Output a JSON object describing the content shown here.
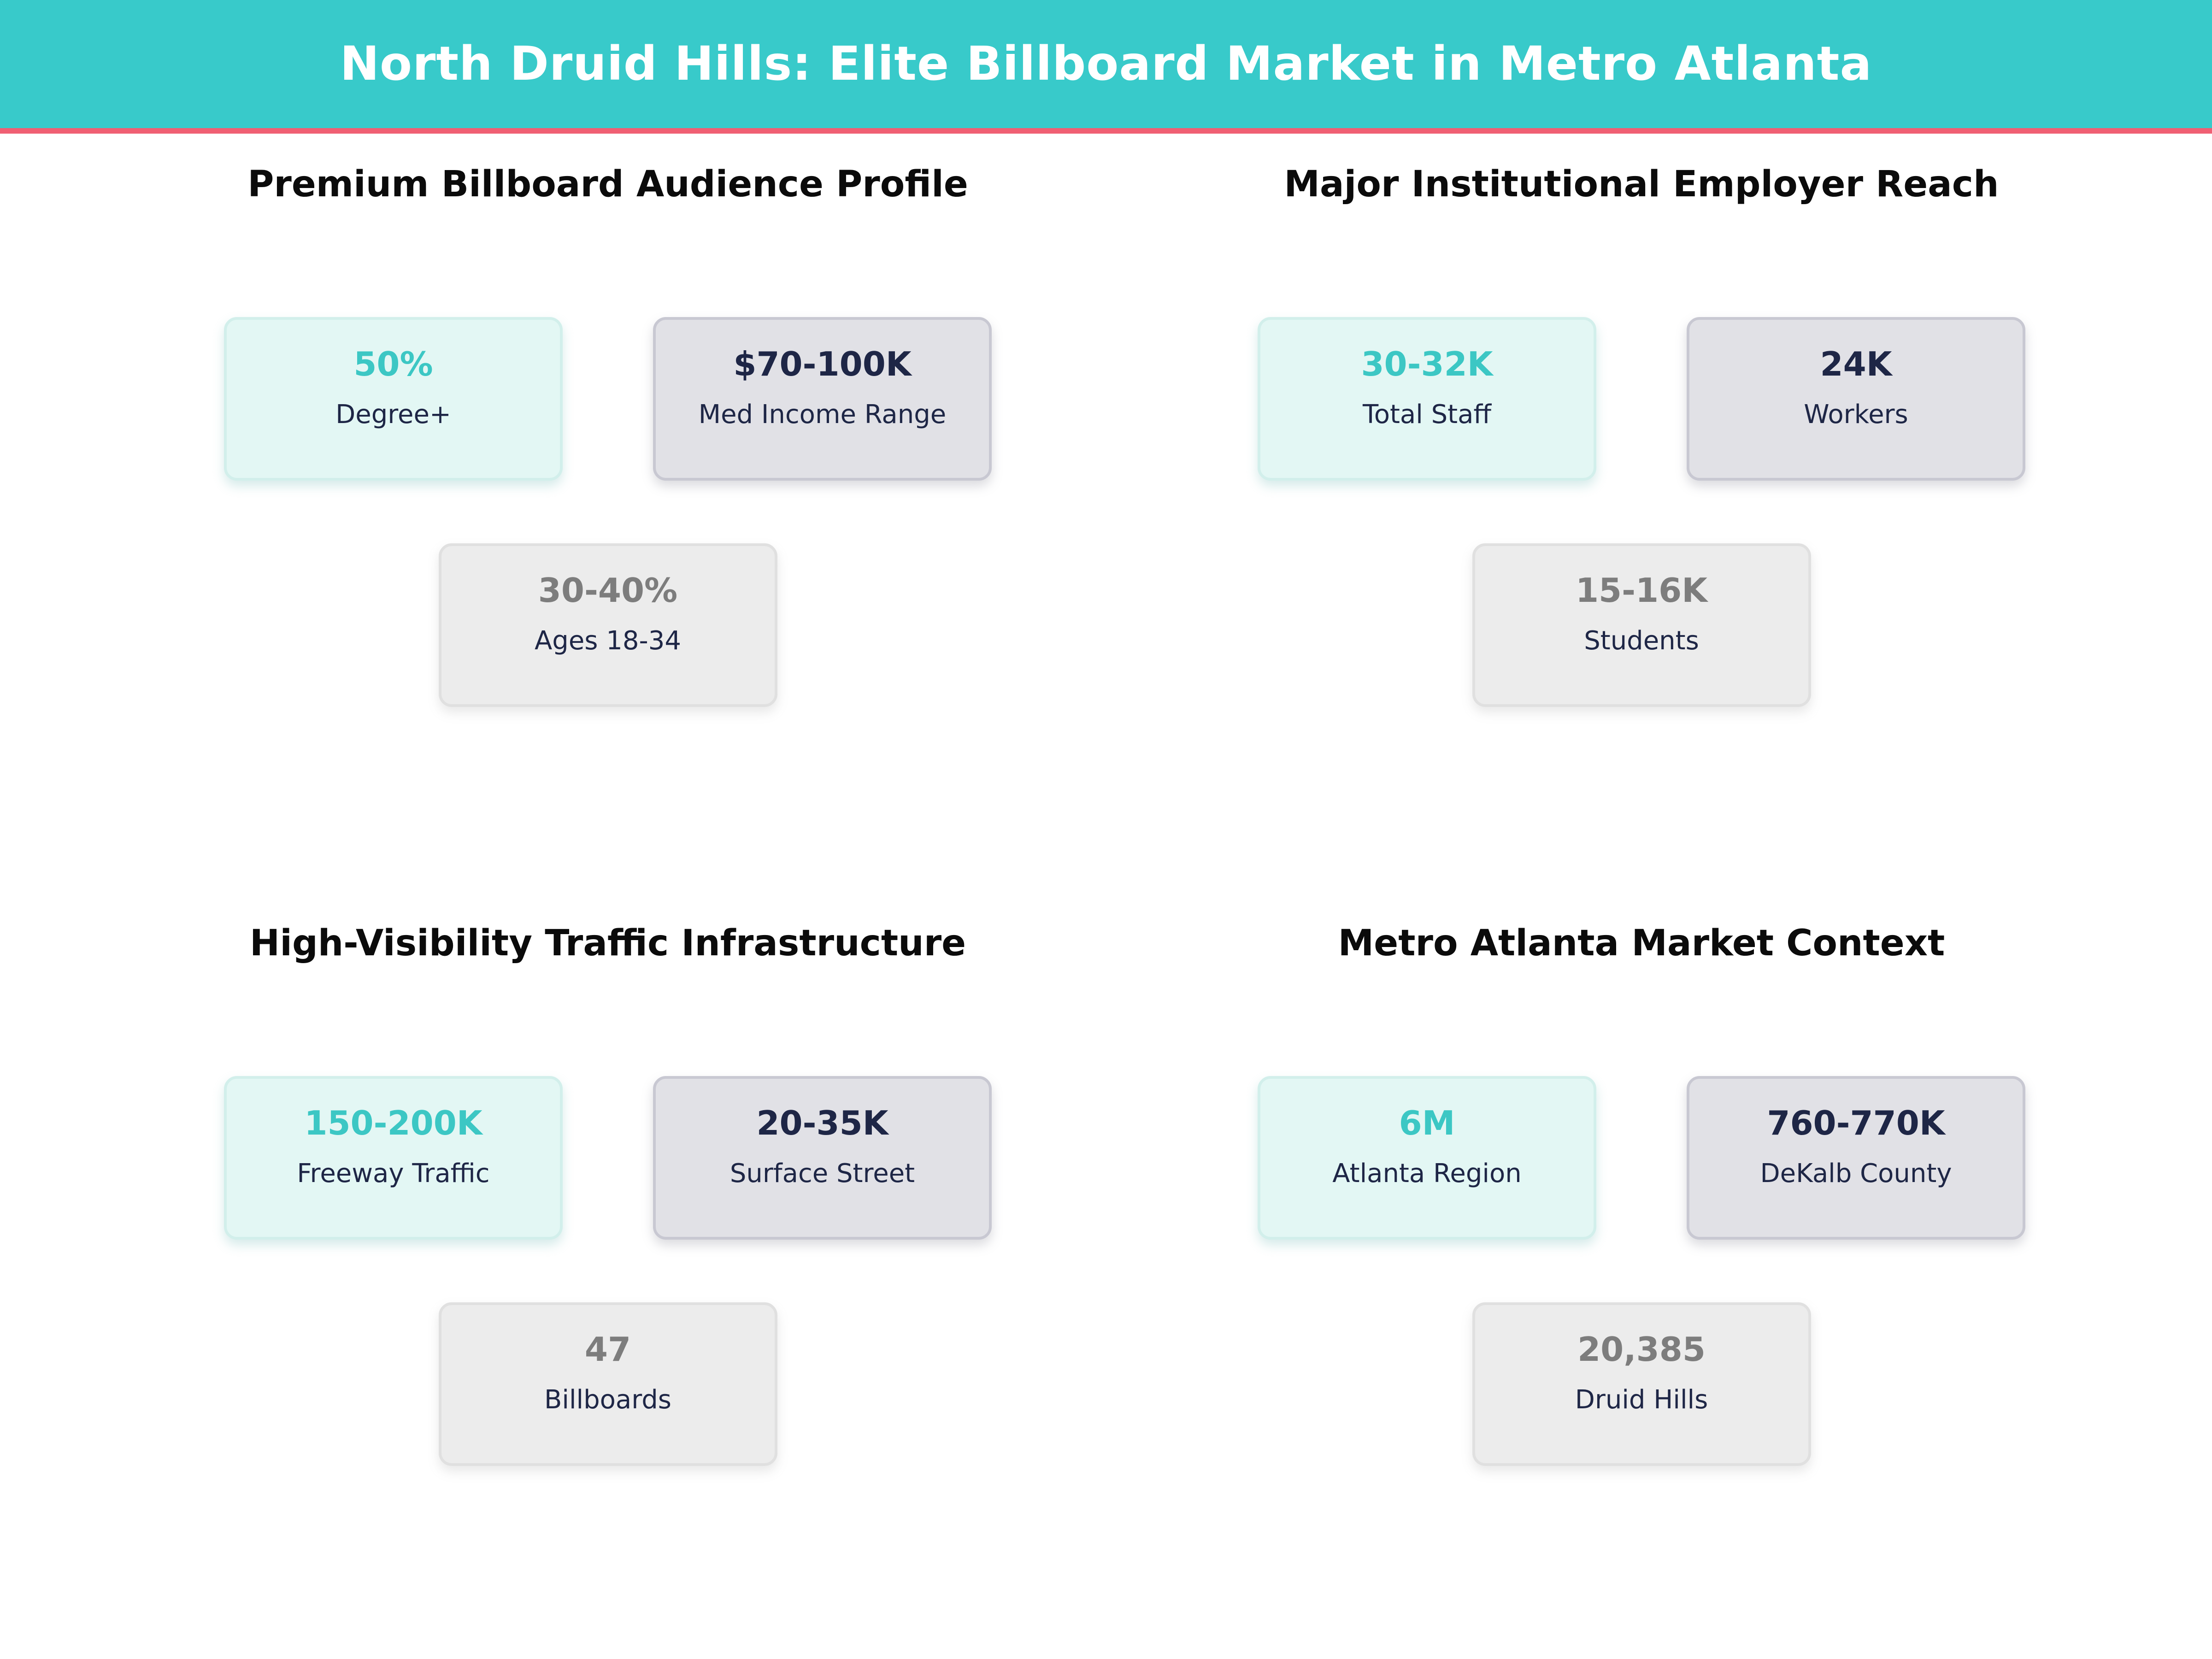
{
  "header": {
    "title": "North Druid Hills: Elite Billboard Market in Metro Atlanta"
  },
  "theme": {
    "header_bg": "#38caca",
    "accent_bar": "#f05f73",
    "teal_text": "#3cc7c4",
    "navy_text": "#1e2646",
    "gray_text": "#7d7d7d",
    "mint_card_bg": "#e3f7f4",
    "mint_card_border": "#d2efeb",
    "gray_card_bg": "#e1e1e6",
    "gray_card_border": "#c8c8d2",
    "light_card_bg": "#ececec",
    "light_card_border": "#e0e0e0"
  },
  "sections": [
    {
      "title": "Premium Billboard Audience Profile",
      "cards": [
        {
          "value": "50%",
          "label": "Degree+"
        },
        {
          "value": "$70-100K",
          "label": "Med Income Range"
        },
        {
          "value": "30-40%",
          "label": "Ages 18-34"
        }
      ]
    },
    {
      "title": "Major Institutional Employer Reach",
      "cards": [
        {
          "value": "30-32K",
          "label": "Total Staff"
        },
        {
          "value": "24K",
          "label": "Workers"
        },
        {
          "value": "15-16K",
          "label": "Students"
        }
      ]
    },
    {
      "title": "High-Visibility Traffic Infrastructure",
      "cards": [
        {
          "value": "150-200K",
          "label": "Freeway Traffic"
        },
        {
          "value": "20-35K",
          "label": "Surface Street"
        },
        {
          "value": "47",
          "label": "Billboards"
        }
      ]
    },
    {
      "title": "Metro Atlanta Market Context",
      "cards": [
        {
          "value": "6M",
          "label": "Atlanta Region"
        },
        {
          "value": "760-770K",
          "label": "DeKalb County"
        },
        {
          "value": "20,385",
          "label": "Druid Hills"
        }
      ]
    }
  ],
  "chart_data": {
    "type": "table",
    "title": "North Druid Hills: Elite Billboard Market in Metro Atlanta",
    "legend_position": "none",
    "grid": false,
    "groups": [
      {
        "title": "Premium Billboard Audience Profile",
        "stats": [
          {
            "value": "50%",
            "label": "Degree+"
          },
          {
            "value": "$70-100K",
            "label": "Med Income Range"
          },
          {
            "value": "30-40%",
            "label": "Ages 18-34"
          }
        ]
      },
      {
        "title": "Major Institutional Employer Reach",
        "stats": [
          {
            "value": "30-32K",
            "label": "Total Staff"
          },
          {
            "value": "24K",
            "label": "Workers"
          },
          {
            "value": "15-16K",
            "label": "Students"
          }
        ]
      },
      {
        "title": "High-Visibility Traffic Infrastructure",
        "stats": [
          {
            "value": "150-200K",
            "label": "Freeway Traffic"
          },
          {
            "value": "20-35K",
            "label": "Surface Street"
          },
          {
            "value": "47",
            "label": "Billboards"
          }
        ]
      },
      {
        "title": "Metro Atlanta Market Context",
        "stats": [
          {
            "value": "6M",
            "label": "Atlanta Region"
          },
          {
            "value": "760-770K",
            "label": "DeKalb County"
          },
          {
            "value": "20,385",
            "label": "Druid Hills"
          }
        ]
      }
    ]
  }
}
